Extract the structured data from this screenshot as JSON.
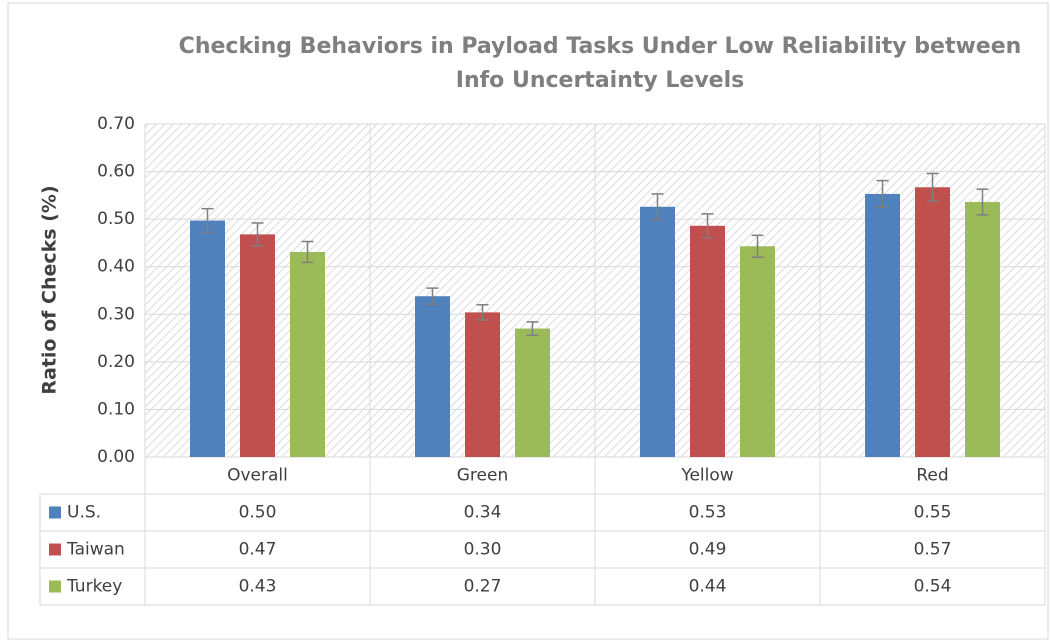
{
  "chart_data": {
    "type": "bar",
    "title": [
      "Checking Behaviors in Payload Tasks Under Low Reliability between",
      "Info Uncertainty Levels"
    ],
    "y_label": "Ratio of Checks (%)",
    "categories": [
      "Overall",
      "Green",
      "Yellow",
      "Red"
    ],
    "series": [
      {
        "name": "U.S.",
        "color": "#4f81bd",
        "values": [
          0.497,
          0.338,
          0.526,
          0.553
        ],
        "errors": [
          0.025,
          0.017,
          0.027,
          0.028
        ],
        "value_labels": [
          "0.50",
          "0.34",
          "0.53",
          "0.55"
        ]
      },
      {
        "name": "Taiwan",
        "color": "#c0504d",
        "values": [
          0.468,
          0.304,
          0.486,
          0.567
        ],
        "errors": [
          0.024,
          0.016,
          0.025,
          0.029
        ],
        "value_labels": [
          "0.47",
          "0.30",
          "0.49",
          "0.57"
        ]
      },
      {
        "name": "Turkey",
        "color": "#9bbb59",
        "values": [
          0.431,
          0.27,
          0.443,
          0.536
        ],
        "errors": [
          0.022,
          0.014,
          0.023,
          0.027
        ],
        "value_labels": [
          "0.43",
          "0.27",
          "0.44",
          "0.54"
        ]
      }
    ],
    "ylim": [
      0,
      0.7
    ],
    "yticks": [
      {
        "value": 0,
        "label": "0.00"
      },
      {
        "value": 0.1,
        "label": "0.10"
      },
      {
        "value": 0.2,
        "label": "0.20"
      },
      {
        "value": 0.3,
        "label": "0.30"
      },
      {
        "value": 0.4,
        "label": "0.40"
      },
      {
        "value": 0.5,
        "label": "0.50"
      },
      {
        "value": 0.6,
        "label": "0.60"
      },
      {
        "value": 0.7,
        "label": "0.70"
      }
    ],
    "grid": true
  }
}
